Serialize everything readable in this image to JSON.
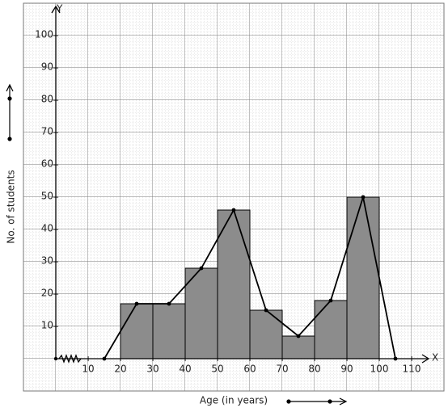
{
  "chart_data": {
    "type": "histogram",
    "y_axis_name": "Y",
    "x_axis_name": "X",
    "ylabel": "No. of students",
    "xlabel": "Age (in years)",
    "bins": [
      20,
      30,
      40,
      50,
      60,
      70,
      80,
      90,
      100
    ],
    "values": [
      17,
      17,
      28,
      46,
      15,
      7,
      18,
      50
    ],
    "color": "#8c8c8c",
    "polygon": {
      "x": [
        15,
        25,
        35,
        45,
        55,
        65,
        75,
        85,
        95,
        105
      ],
      "values": [
        0,
        17,
        17,
        28,
        46,
        15,
        7,
        18,
        50,
        0
      ],
      "color": "#000000"
    },
    "xlim": [
      -10,
      120
    ],
    "ylim": [
      -10,
      110
    ],
    "xticks": [
      10,
      20,
      30,
      40,
      50,
      60,
      70,
      80,
      90,
      100,
      110
    ],
    "yticks": [
      10,
      20,
      30,
      40,
      50,
      60,
      70,
      80,
      90,
      100
    ]
  }
}
